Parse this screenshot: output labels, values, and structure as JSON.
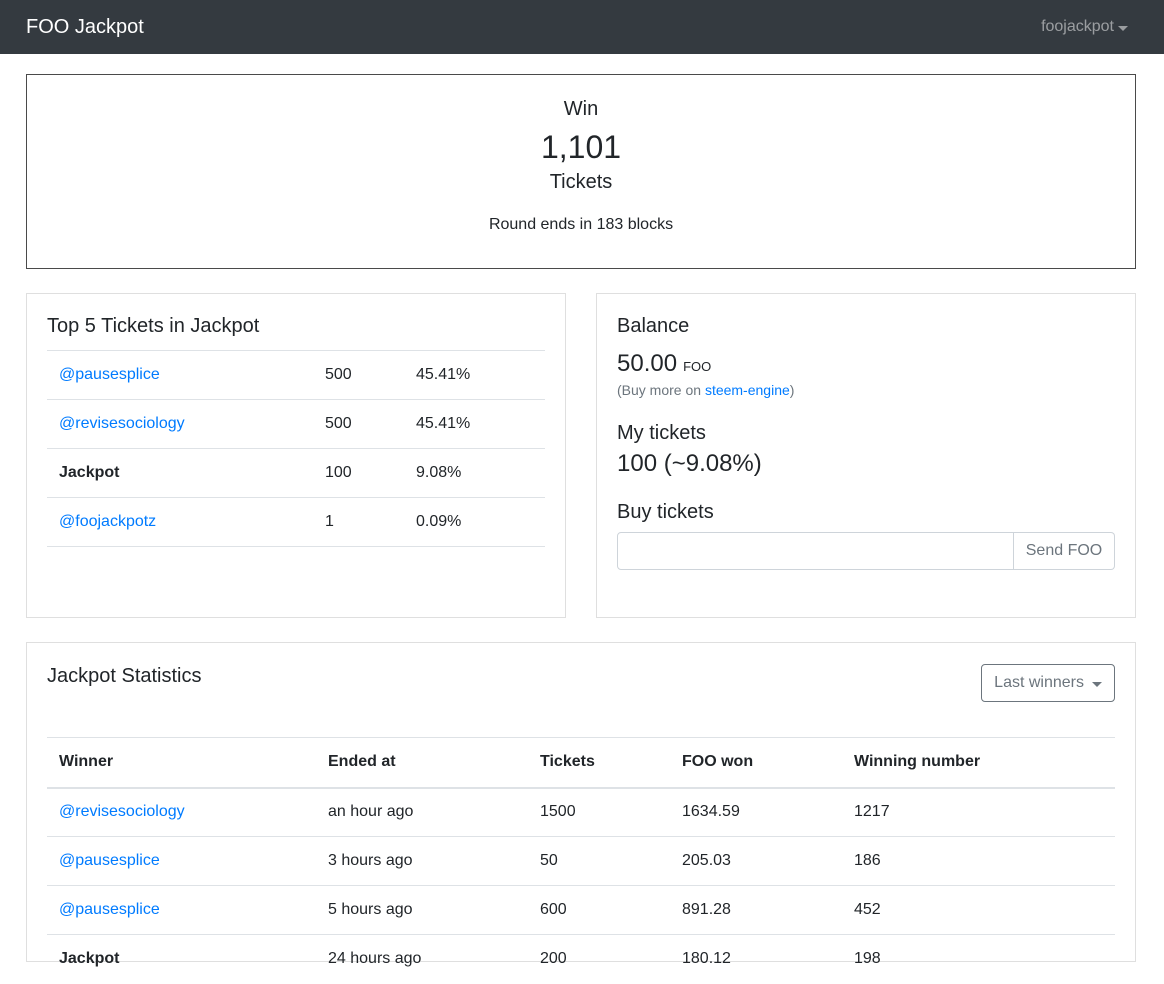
{
  "nav": {
    "brand": "FOO Jackpot",
    "user": "foojackpot"
  },
  "hero": {
    "win_label": "Win",
    "ticket_count": "1,101",
    "tickets_label": "Tickets",
    "round_info": "Round ends in 183 blocks"
  },
  "top5": {
    "title": "Top 5 Tickets in Jackpot",
    "rows": [
      {
        "name": "@pausesplice",
        "tickets": "500",
        "percent": "45.41%"
      },
      {
        "name": "@revisesociology",
        "tickets": "500",
        "percent": "45.41%"
      },
      {
        "name": "Jackpot",
        "tickets": "100",
        "percent": "9.08%"
      },
      {
        "name": "@foojackpotz",
        "tickets": "1",
        "percent": "0.09%"
      }
    ]
  },
  "balance": {
    "title": "Balance",
    "amount": "50.00",
    "unit": "FOO",
    "buy_prefix": "(Buy more on ",
    "buy_link": "steem-engine",
    "buy_suffix": ")",
    "my_tickets_title": "My tickets",
    "my_tickets_value": "100 (~9.08%)",
    "buy_tickets_title": "Buy tickets",
    "input_value": "",
    "send_label": "Send FOO"
  },
  "stats": {
    "title": "Jackpot Statistics",
    "dropdown_label": "Last winners",
    "headers": [
      "Winner",
      "Ended at",
      "Tickets",
      "FOO won",
      "Winning number"
    ],
    "rows": [
      [
        "@revisesociology",
        "an hour ago",
        "1500",
        "1634.59",
        "1217"
      ],
      [
        "@pausesplice",
        "3 hours ago",
        "50",
        "205.03",
        "186"
      ],
      [
        "@pausesplice",
        "5 hours ago",
        "600",
        "891.28",
        "452"
      ],
      [
        "Jackpot",
        "24 hours ago",
        "200",
        "180.12",
        "198"
      ]
    ]
  }
}
